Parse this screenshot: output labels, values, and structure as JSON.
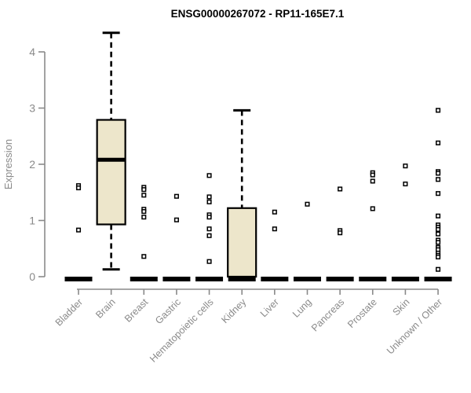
{
  "title": "ENSG00000267072 - RP11-165E7.1",
  "chart_data": {
    "type": "boxplot",
    "title": "ENSG00000267072 - RP11-165E7.1",
    "xlabel": "",
    "ylabel": "Expression",
    "ylim": [
      0,
      4.4
    ],
    "yticks": [
      0,
      1,
      2,
      3,
      4
    ],
    "grid": false,
    "legend": "none",
    "categories": [
      "Bladder",
      "Brain",
      "Breast",
      "Gastric",
      "Hematopoietic cells",
      "Kidney",
      "Liver",
      "Lung",
      "Pancreas",
      "Prostate",
      "Skin",
      "Unknown / Other"
    ],
    "series": [
      {
        "name": "Bladder",
        "q1": 0,
        "median": 0,
        "q3": 0,
        "whisker_low": null,
        "whisker_high": null,
        "outliers": [
          1.62,
          1.58,
          0.83
        ]
      },
      {
        "name": "Brain",
        "q1": 0.93,
        "median": 2.08,
        "q3": 2.79,
        "whisker_low": 0.13,
        "whisker_high": 4.34,
        "outliers": []
      },
      {
        "name": "Breast",
        "q1": 0,
        "median": 0,
        "q3": 0,
        "whisker_low": null,
        "whisker_high": null,
        "outliers": [
          1.59,
          1.55,
          1.45,
          1.2,
          1.16,
          1.06,
          0.36
        ]
      },
      {
        "name": "Gastric",
        "q1": 0,
        "median": 0,
        "q3": 0,
        "whisker_low": null,
        "whisker_high": null,
        "outliers": [
          1.43,
          1.01
        ]
      },
      {
        "name": "Hematopoietic cells",
        "q1": 0,
        "median": 0,
        "q3": 0,
        "whisker_low": null,
        "whisker_high": null,
        "outliers": [
          1.8,
          1.42,
          1.33,
          1.1,
          1.06,
          0.85,
          0.73,
          0.27
        ]
      },
      {
        "name": "Kidney",
        "q1": 0,
        "median": 0,
        "q3": 1.22,
        "whisker_low": null,
        "whisker_high": 2.96,
        "outliers": []
      },
      {
        "name": "Liver",
        "q1": 0,
        "median": 0,
        "q3": 0,
        "whisker_low": null,
        "whisker_high": null,
        "outliers": [
          1.15,
          0.85
        ]
      },
      {
        "name": "Lung",
        "q1": 0,
        "median": 0,
        "q3": 0,
        "whisker_low": null,
        "whisker_high": null,
        "outliers": [
          1.29
        ]
      },
      {
        "name": "Pancreas",
        "q1": 0,
        "median": 0,
        "q3": 0,
        "whisker_low": null,
        "whisker_high": null,
        "outliers": [
          1.56,
          0.82,
          0.78
        ]
      },
      {
        "name": "Prostate",
        "q1": 0,
        "median": 0,
        "q3": 0,
        "whisker_low": null,
        "whisker_high": null,
        "outliers": [
          1.85,
          1.81,
          1.7,
          1.21
        ]
      },
      {
        "name": "Skin",
        "q1": 0,
        "median": 0,
        "q3": 0,
        "whisker_low": null,
        "whisker_high": null,
        "outliers": [
          1.97,
          1.65
        ]
      },
      {
        "name": "Unknown / Other",
        "q1": 0,
        "median": 0,
        "q3": 0,
        "whisker_low": null,
        "whisker_high": null,
        "outliers": [
          2.96,
          2.38,
          1.87,
          1.84,
          1.73,
          1.48,
          1.08,
          0.92,
          0.88,
          0.84,
          0.76,
          0.65,
          0.61,
          0.52,
          0.48,
          0.42,
          0.38,
          0.35,
          0.13
        ]
      }
    ],
    "colors": {
      "box_fill": "#EDE6CB",
      "box_stroke": "#000000",
      "outlier_fill": "#ffffff",
      "axis": "#8a8a8a",
      "tick_label": "#8a8a8a",
      "title": "#000000",
      "background": "#ffffff"
    }
  }
}
